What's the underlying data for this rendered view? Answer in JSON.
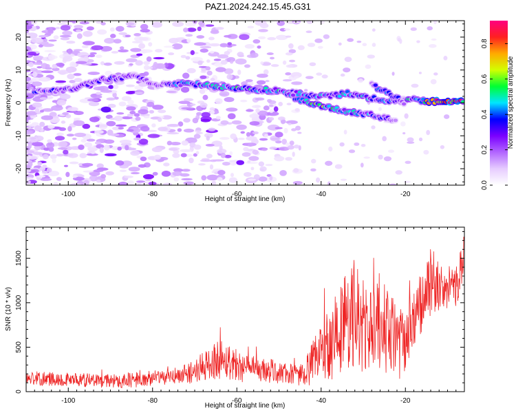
{
  "figure": {
    "title": "PAZ1.2024.242.15.45.G31"
  },
  "chart_data": [
    {
      "type": "heatmap",
      "xlabel": "Height of straight line (km)",
      "ylabel": "Frequency (Hz)",
      "xlim": [
        -110,
        -6
      ],
      "ylim": [
        -25,
        25
      ],
      "x_ticks": [
        -100,
        -80,
        -60,
        -40,
        -20
      ],
      "y_ticks": [
        -20,
        -10,
        0,
        10,
        20
      ],
      "colorbar": {
        "label": "Normalized spectral amplitude",
        "range": [
          0.0,
          0.93
        ],
        "ticks": [
          0.0,
          0.2,
          0.4,
          0.6,
          0.8
        ],
        "tick_labels": [
          "0.0",
          "0.2",
          "0.4",
          "0.6",
          "0.8"
        ],
        "colormap": [
          "#ffffff",
          "#e6ccff",
          "#b266ff",
          "#7a00ff",
          "#0000ff",
          "#00e5ff",
          "#00ff33",
          "#d2ff00",
          "#ffaa00",
          "#ff2020",
          "#ff0080"
        ]
      },
      "ridges": [
        {
          "x": [
            -108,
            -100,
            -92,
            -85,
            -78,
            -72,
            -66,
            -60,
            -54,
            -48,
            -42,
            -38,
            -34,
            -30,
            -26,
            -22,
            -18,
            -14,
            -10,
            -6
          ],
          "y": [
            3.5,
            4.0,
            7.0,
            8.0,
            5.5,
            6.0,
            5.0,
            4.5,
            4.0,
            3.5,
            2.0,
            2.0,
            3.0,
            2.0,
            1.0,
            0.5,
            1.0,
            0.5,
            0.5,
            0.5
          ],
          "amplitude": [
            0.35,
            0.3,
            0.35,
            0.3,
            0.3,
            0.45,
            0.45,
            0.5,
            0.5,
            0.45,
            0.5,
            0.4,
            0.5,
            0.45,
            0.4,
            0.4,
            0.5,
            0.8,
            0.9,
            0.85
          ]
        },
        {
          "x": [
            -48,
            -44,
            -40,
            -36,
            -32,
            -28,
            -24,
            -22
          ],
          "y": [
            2.5,
            0.5,
            -1.0,
            -2.0,
            -3.0,
            -3.5,
            -5.0,
            -6.0
          ],
          "amplitude": [
            0.4,
            0.5,
            0.6,
            0.45,
            0.45,
            0.4,
            0.35,
            0.25
          ]
        },
        {
          "x": [
            -28,
            -26,
            -24,
            -22,
            -20
          ],
          "y": [
            6.0,
            4.0,
            3.0,
            1.5,
            0.0
          ],
          "amplitude": [
            0.3,
            0.4,
            0.4,
            0.35,
            0.3
          ]
        }
      ]
    },
    {
      "type": "line",
      "xlabel": "Height of straight line (km)",
      "ylabel": "SNR (10 * v/v)",
      "xlim": [
        -110,
        -6
      ],
      "ylim": [
        0,
        1850
      ],
      "x_ticks": [
        -100,
        -80,
        -60,
        -40,
        -20
      ],
      "y_ticks": [
        0,
        500,
        1000,
        1500
      ],
      "series": [
        {
          "color": "#ee2222",
          "x": [
            -110,
            -100,
            -95,
            -90,
            -85,
            -80,
            -76,
            -73,
            -70,
            -67,
            -64,
            -61,
            -58,
            -55,
            -52,
            -50,
            -48,
            -46,
            -44,
            -42,
            -40,
            -38,
            -36,
            -34,
            -32,
            -30,
            -28,
            -26,
            -24,
            -22,
            -20,
            -18,
            -16,
            -14,
            -12,
            -10,
            -8,
            -6
          ],
          "y": [
            150,
            140,
            130,
            120,
            130,
            150,
            160,
            190,
            230,
            300,
            380,
            330,
            260,
            240,
            230,
            220,
            200,
            190,
            210,
            300,
            480,
            560,
            660,
            820,
            880,
            720,
            680,
            800,
            660,
            560,
            520,
            800,
            1000,
            1250,
            1150,
            1150,
            1200,
            1500
          ],
          "jitter": [
            80,
            80,
            80,
            80,
            90,
            90,
            90,
            110,
            140,
            180,
            240,
            200,
            160,
            150,
            140,
            130,
            120,
            120,
            150,
            260,
            380,
            440,
            520,
            600,
            640,
            560,
            500,
            560,
            500,
            440,
            360,
            380,
            360,
            420,
            260,
            260,
            240,
            280
          ]
        }
      ]
    }
  ]
}
